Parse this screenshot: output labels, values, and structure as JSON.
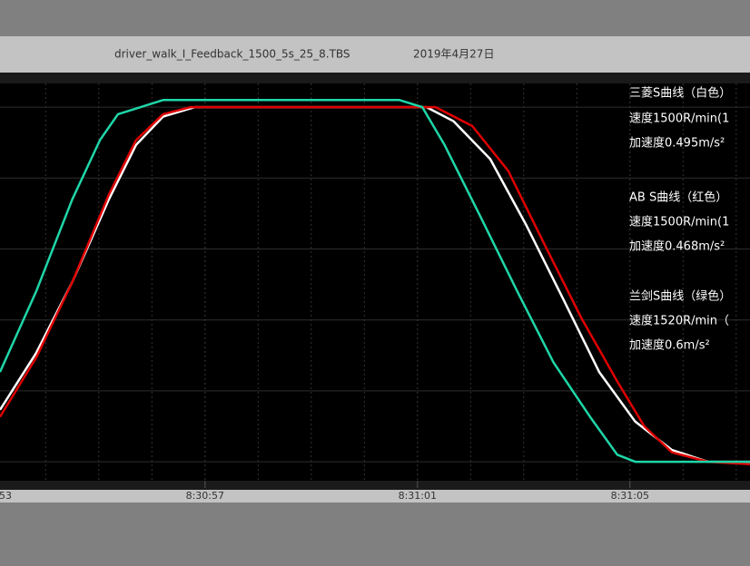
{
  "chart_data": {
    "type": "line",
    "title": "driver_walk_I_Feedback_1500_5s_25_8.TBS",
    "subtitle": "2019年4月27日",
    "annotations": [
      "三菱S曲线（白色）",
      "速度1500R/min(1",
      "加速度0.495m/s²",
      "AB S曲线（红色）",
      "速度1500R/min(1",
      "加速度0.468m/s²",
      "兰剑S曲线（绿色）",
      "速度1520R/min（",
      "加速度0.6m/s²"
    ],
    "series": [
      {
        "color": "#ffffff",
        "x": [
          0.14,
          0.82,
          1.5,
          2.19,
          2.7,
          3.21,
          3.81,
          4.41,
          8.17,
          8.68,
          9.37,
          10.05,
          10.74,
          11.42,
          12.1,
          12.79,
          13.47,
          14.26
        ],
        "values": [
          220,
          460,
          760,
          1110,
          1340,
          1460,
          1500,
          1500,
          1500,
          1440,
          1280,
          1000,
          690,
          380,
          170,
          50,
          0,
          0
        ]
      },
      {
        "color": "#e00000",
        "x": [
          0.14,
          0.82,
          1.5,
          2.19,
          2.7,
          3.21,
          3.73,
          4.41,
          8.34,
          9.03,
          9.71,
          10.39,
          11.08,
          11.76,
          12.27,
          12.79,
          13.47,
          14.26
        ],
        "values": [
          190,
          440,
          760,
          1130,
          1360,
          1470,
          1500,
          1500,
          1500,
          1420,
          1230,
          920,
          610,
          340,
          150,
          40,
          0,
          -10
        ]
      },
      {
        "color": "#1fd6a8",
        "x": [
          0.14,
          0.82,
          1.5,
          2.02,
          2.36,
          2.79,
          3.21,
          3.73,
          5.26,
          7.66,
          8.09,
          8.51,
          9.2,
          9.88,
          10.56,
          11.25,
          11.76,
          12.1,
          14.26
        ],
        "values": [
          380,
          720,
          1110,
          1360,
          1470,
          1500,
          1530,
          1530,
          1530,
          1530,
          1500,
          1340,
          1030,
          720,
          420,
          190,
          30,
          0,
          0
        ]
      }
    ],
    "xlim": [
      0.14,
      14.26
    ],
    "xticks": [
      {
        "value": 0,
        "label": "8:30:53"
      },
      {
        "value": 4,
        "label": "8:30:57"
      },
      {
        "value": 8,
        "label": "8:31:01"
      },
      {
        "value": 12,
        "label": "8:31:05"
      }
    ],
    "xminorticks": [
      1,
      2,
      3,
      5,
      6,
      7,
      9,
      10,
      11,
      13,
      14
    ],
    "ylim": [
      -80,
      1600
    ],
    "yticks": [
      0,
      300,
      600,
      900,
      1200,
      1500
    ],
    "grid": true
  }
}
